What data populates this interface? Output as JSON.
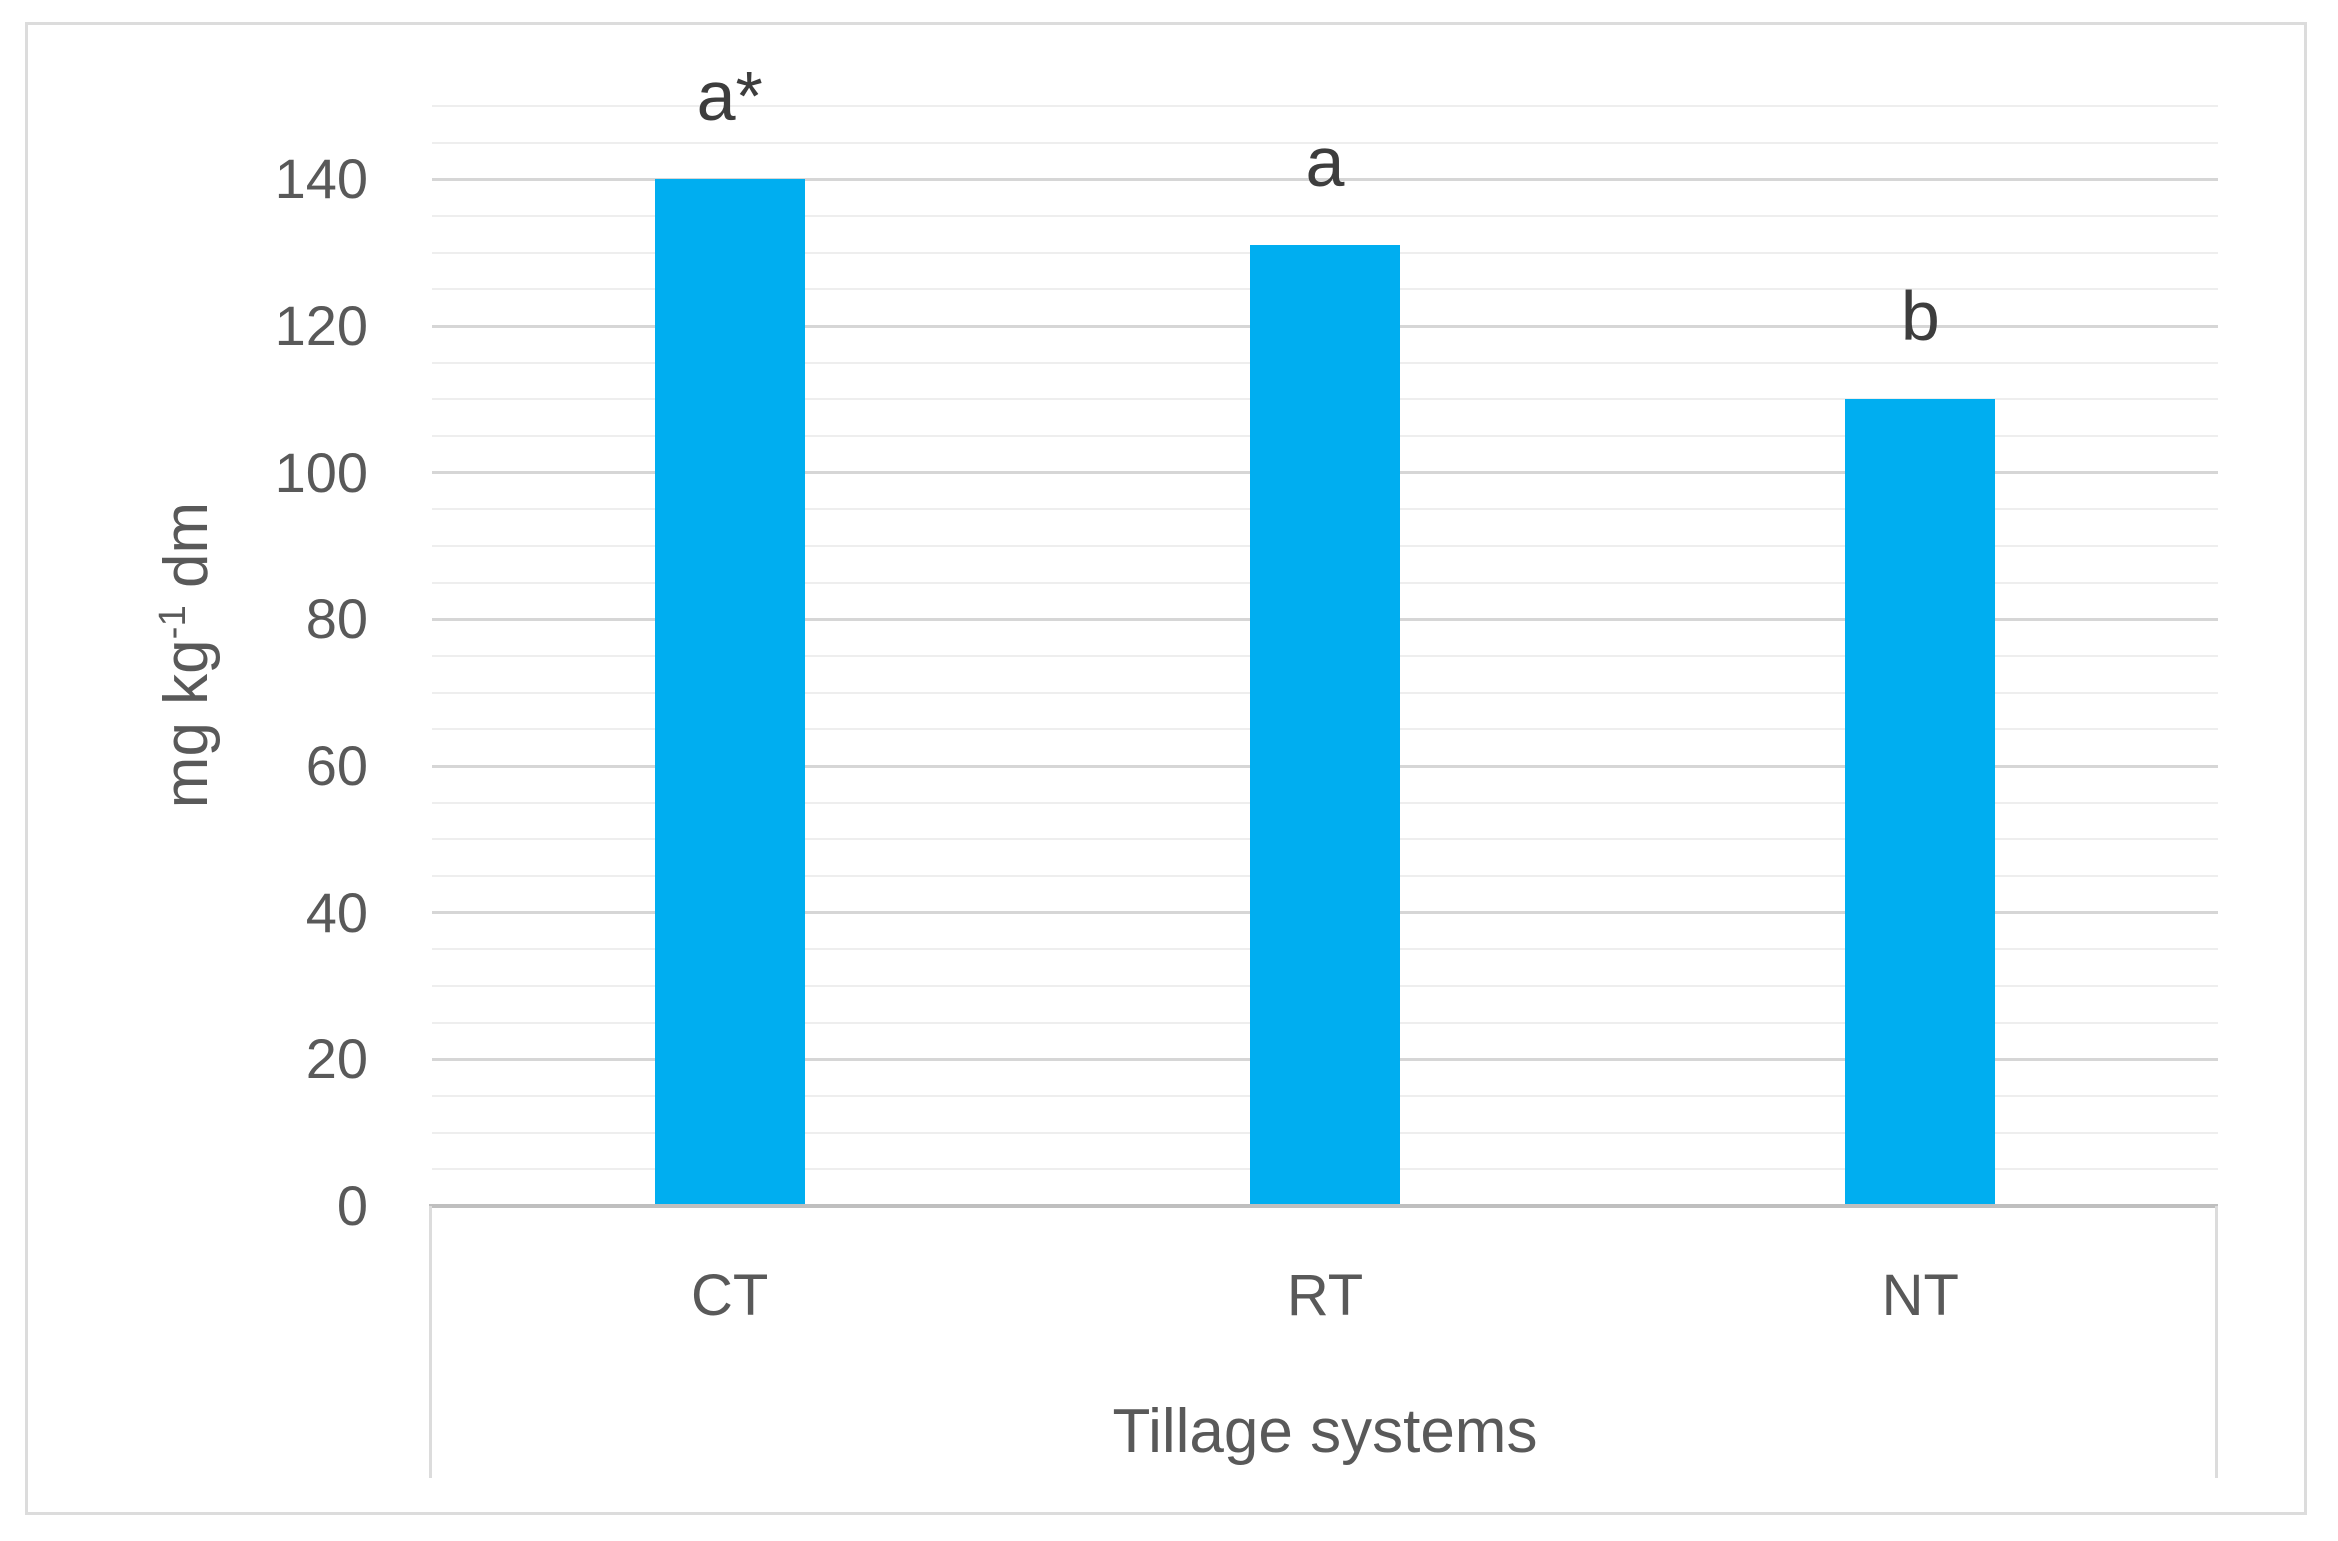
{
  "chart_data": {
    "type": "bar",
    "title": "",
    "categories": [
      "CT",
      "RT",
      "NT"
    ],
    "values": [
      140,
      131,
      110
    ],
    "bar_annotations": [
      "a*",
      "a",
      "b"
    ],
    "xlabel": "Tillage systems",
    "ylabel": "mg kg⁻¹ dm",
    "ylabel_parts": {
      "base": "mg kg",
      "superscript": "-1",
      "rest": " dm"
    },
    "ylim": [
      0,
      150
    ],
    "y_major_ticks": [
      0,
      20,
      40,
      60,
      80,
      100,
      120,
      140
    ],
    "y_minor_step": 5,
    "grid": "horizontal, major and minor lines, no vertical grid",
    "legend": "none",
    "bar_color": "#00AEF0"
  },
  "colors": {
    "bar": "#00AEF0",
    "major_gridline": "#d6d6d6",
    "minor_gridline": "#eeeeee",
    "axis_line": "#bfbfbf",
    "frame_border": "#dcdcdc",
    "tick_text": "#595959",
    "annotation_text": "#3d3d3d"
  }
}
